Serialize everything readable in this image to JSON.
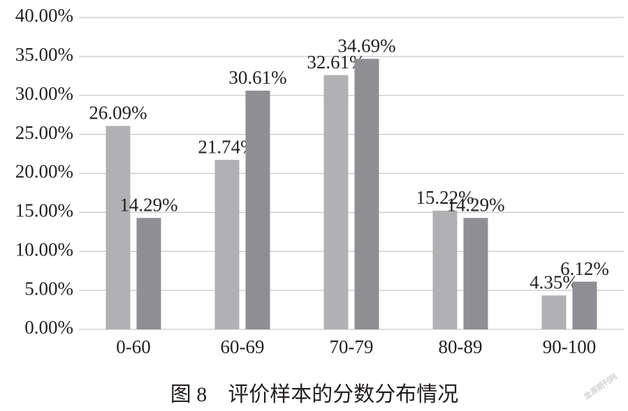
{
  "chart_data": {
    "type": "bar",
    "title": "图 8　评价样本的分数分布情况",
    "watermark": "龙源期刊网",
    "categories": [
      "0-60",
      "60-69",
      "70-79",
      "80-89",
      "90-100"
    ],
    "series": [
      {
        "color": "#b1b1b3",
        "values": [
          26.09,
          21.74,
          32.61,
          15.22,
          4.35
        ],
        "value_labels": [
          "26.09%",
          "21.74%",
          "32.61%",
          "15.22%",
          "4.35%"
        ]
      },
      {
        "color": "#8f8f93",
        "values": [
          14.29,
          30.61,
          34.69,
          14.29,
          6.12
        ],
        "value_labels": [
          "14.29%",
          "30.61%",
          "34.69%",
          "14.29%",
          "6.12%"
        ]
      }
    ],
    "ylim": [
      0,
      40
    ],
    "yticks": [
      {
        "value": 0,
        "label": "0.00%"
      },
      {
        "value": 5,
        "label": "5.00%"
      },
      {
        "value": 10,
        "label": "10.00%"
      },
      {
        "value": 15,
        "label": "15.00%"
      },
      {
        "value": 20,
        "label": "20.00%"
      },
      {
        "value": 25,
        "label": "25.00%"
      },
      {
        "value": 30,
        "label": "30.00%"
      },
      {
        "value": 35,
        "label": "35.00%"
      },
      {
        "value": 40,
        "label": "40.00%"
      }
    ],
    "grid": true
  }
}
